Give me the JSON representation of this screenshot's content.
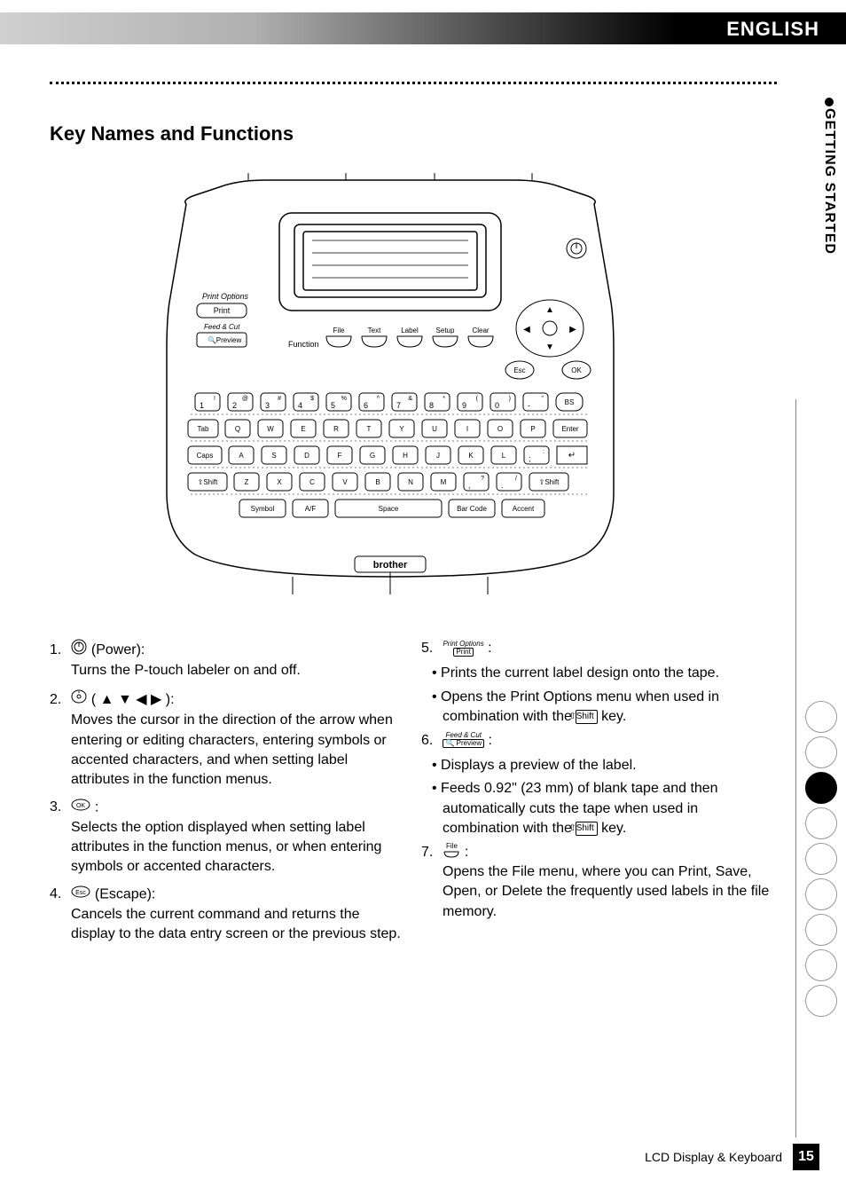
{
  "language_label": "ENGLISH",
  "side_tab": "GETTING STARTED",
  "section_title": "Key Names and Functions",
  "diagram": {
    "print_options_label": "Print Options",
    "print_btn": "Print",
    "feed_cut_label": "Feed & Cut",
    "preview_btn": "Preview",
    "function_label": "Function",
    "func_keys": [
      "File",
      "Text",
      "Label",
      "Setup",
      "Clear"
    ],
    "esc": "Esc",
    "ok": "OK",
    "bs": "BS",
    "num_row": [
      {
        "n": "1",
        "s": "!"
      },
      {
        "n": "2",
        "s": "@"
      },
      {
        "n": "3",
        "s": "#"
      },
      {
        "n": "4",
        "s": "$"
      },
      {
        "n": "5",
        "s": "%"
      },
      {
        "n": "6",
        "s": "^"
      },
      {
        "n": "7",
        "s": "&"
      },
      {
        "n": "8",
        "s": "*"
      },
      {
        "n": "9",
        "s": "("
      },
      {
        "n": "0",
        "s": ")"
      },
      {
        "n": "-",
        "s": "\""
      }
    ],
    "row2_left": "Tab",
    "row2": [
      "Q",
      "W",
      "E",
      "R",
      "T",
      "Y",
      "U",
      "I",
      "O",
      "P"
    ],
    "row2_right": "Enter",
    "row3_left": "Caps",
    "row3": [
      "A",
      "S",
      "D",
      "F",
      "G",
      "H",
      "J",
      "K",
      "L"
    ],
    "row3_punct": {
      "top": ":",
      "bot": ";"
    },
    "row4_left": "Shift",
    "row4": [
      "Z",
      "X",
      "C",
      "V",
      "B",
      "N",
      "M"
    ],
    "row4_p1": {
      "top": "?",
      "bot": ","
    },
    "row4_p2": {
      "top": "/",
      "bot": "."
    },
    "row4_right": "Shift",
    "row5": [
      "Symbol",
      "A/F",
      "Space",
      "Bar Code",
      "Accent"
    ],
    "brand": "brother"
  },
  "left_items": [
    {
      "n": "1.",
      "label": "(Power):",
      "desc": "Turns the P-touch labeler on and off."
    },
    {
      "n": "2.",
      "label_arrows": "( ▲ ▼ ◀ ▶ ):",
      "desc": "Moves the cursor in the direction of the arrow when entering or editing characters, entering symbols or accented characters, and when setting label attributes in the function menus."
    },
    {
      "n": "3.",
      "label": ":",
      "desc": "Selects the option displayed when setting label attributes in the function menus, or when entering symbols or accented characters."
    },
    {
      "n": "4.",
      "label": "(Escape):",
      "desc": "Cancels the current command and returns the display to the data entry screen or the previous step."
    }
  ],
  "right_items": {
    "i5": {
      "n": "5.",
      "top": "Print Options",
      "bot": "Print"
    },
    "i5_bullets": [
      "Prints the current label design onto the tape.",
      "Opens the Print Options menu when used in combination with the"
    ],
    "key_suffix": "key.",
    "i6": {
      "n": "6.",
      "top": "Feed & Cut",
      "bot": "Preview"
    },
    "i6_bullets": [
      "Displays a preview of the label.",
      "Feeds 0.92\" (23 mm) of blank tape and then automatically cuts the tape when used in combination with the"
    ],
    "i7": {
      "n": "7.",
      "top": "File"
    },
    "i7_desc": "Opens the File menu, where you can Print, Save, Open, or Delete the frequently used labels in the file memory."
  },
  "shift_label": "⇧Shift",
  "footer_text": "LCD Display & Keyboard",
  "page_number": "15",
  "side_circles_count": 9,
  "side_circles_filled_index": 2
}
